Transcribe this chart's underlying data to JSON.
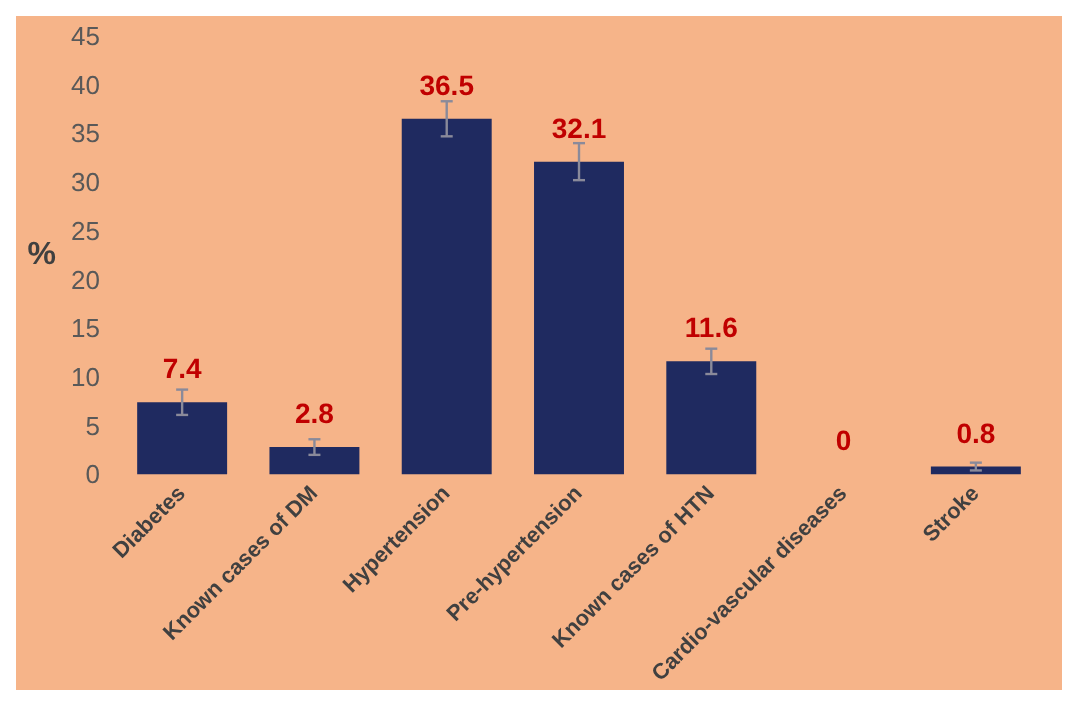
{
  "chart_data": {
    "type": "bar",
    "ylabel": "%",
    "categories": [
      "Diabetes",
      "Known cases of DM",
      "Hypertension",
      "Pre-hypertension",
      "Known cases of HTN",
      "Cardio-vascular diseases",
      "Stroke"
    ],
    "values": [
      7.4,
      2.8,
      36.5,
      32.1,
      11.6,
      0,
      0.8
    ],
    "errors": [
      1.3,
      0.8,
      1.8,
      1.9,
      1.3,
      null,
      0.4
    ],
    "color": "#1f2a60",
    "data_labels": true,
    "ylim": [
      0,
      45
    ],
    "yticks": [
      0,
      5,
      10,
      15,
      20,
      25,
      30,
      35,
      40,
      45
    ],
    "grid": false
  }
}
